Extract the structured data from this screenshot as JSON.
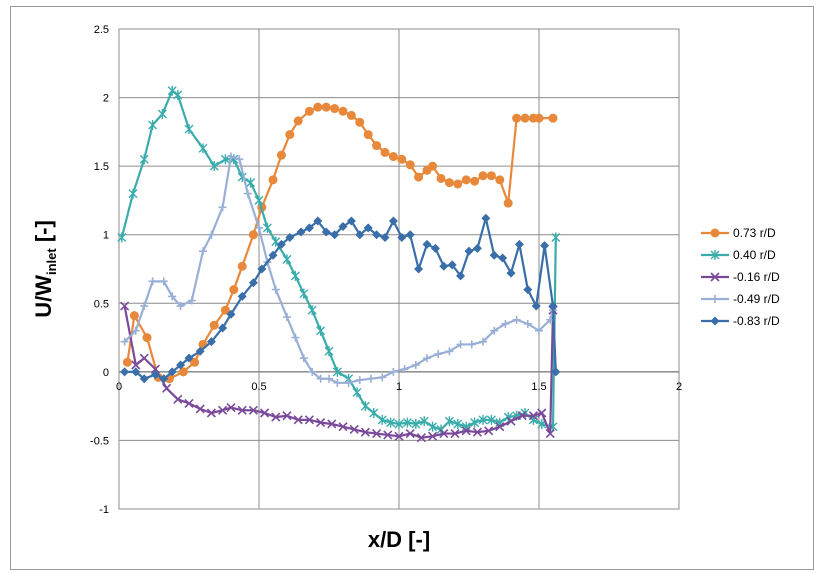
{
  "chart_data": {
    "type": "line",
    "title": "",
    "xlabel": "x/D [-]",
    "ylabel": {
      "main": "U/W",
      "subscript": "inlet",
      "suffix": " [-]"
    },
    "xlim": [
      0,
      2
    ],
    "ylim": [
      -1,
      2.5
    ],
    "xticks": [
      0,
      0.5,
      1,
      1.5,
      2
    ],
    "xtick_labels": [
      "0",
      "0.5",
      "1",
      "1.5",
      "2"
    ],
    "yticks": [
      -1,
      -0.5,
      0,
      0.5,
      1,
      1.5,
      2,
      2.5
    ],
    "ytick_labels": [
      "-1",
      "-0.5",
      "0",
      "0.5",
      "1",
      "1.5",
      "2",
      "2.5"
    ],
    "grid": true,
    "legend_position": "right",
    "series": [
      {
        "name": "0.73 r/D",
        "color": "#e8883a",
        "marker": "circle",
        "x": [
          0.03,
          0.055,
          0.1,
          0.14,
          0.18,
          0.23,
          0.27,
          0.3,
          0.34,
          0.38,
          0.41,
          0.44,
          0.48,
          0.51,
          0.55,
          0.58,
          0.61,
          0.64,
          0.68,
          0.71,
          0.74,
          0.77,
          0.8,
          0.83,
          0.86,
          0.89,
          0.92,
          0.95,
          0.98,
          1.01,
          1.04,
          1.07,
          1.1,
          1.12,
          1.15,
          1.18,
          1.21,
          1.24,
          1.27,
          1.3,
          1.33,
          1.36,
          1.39,
          1.42,
          1.45,
          1.48,
          1.5,
          1.55
        ],
        "y": [
          0.07,
          0.41,
          0.25,
          -0.04,
          -0.05,
          0.0,
          0.07,
          0.2,
          0.34,
          0.45,
          0.6,
          0.77,
          1.0,
          1.2,
          1.4,
          1.58,
          1.73,
          1.83,
          1.9,
          1.93,
          1.93,
          1.92,
          1.9,
          1.87,
          1.82,
          1.73,
          1.65,
          1.6,
          1.57,
          1.55,
          1.51,
          1.42,
          1.47,
          1.5,
          1.41,
          1.38,
          1.37,
          1.4,
          1.39,
          1.43,
          1.43,
          1.4,
          1.23,
          1.85,
          1.85,
          1.85,
          1.85,
          1.85
        ]
      },
      {
        "name": "0.40 r/D",
        "color": "#3aacac",
        "marker": "star",
        "x": [
          0.01,
          0.05,
          0.09,
          0.12,
          0.155,
          0.19,
          0.21,
          0.25,
          0.3,
          0.34,
          0.38,
          0.41,
          0.44,
          0.47,
          0.5,
          0.53,
          0.56,
          0.6,
          0.63,
          0.66,
          0.69,
          0.72,
          0.75,
          0.78,
          0.82,
          0.85,
          0.88,
          0.91,
          0.94,
          0.97,
          1.0,
          1.03,
          1.06,
          1.09,
          1.12,
          1.15,
          1.18,
          1.21,
          1.24,
          1.27,
          1.3,
          1.33,
          1.36,
          1.39,
          1.42,
          1.45,
          1.48,
          1.51,
          1.55,
          1.56
        ],
        "y": [
          0.98,
          1.3,
          1.55,
          1.8,
          1.88,
          2.05,
          2.02,
          1.77,
          1.63,
          1.5,
          1.55,
          1.55,
          1.42,
          1.38,
          1.25,
          1.05,
          0.95,
          0.82,
          0.7,
          0.57,
          0.45,
          0.3,
          0.15,
          0.0,
          -0.05,
          -0.15,
          -0.25,
          -0.3,
          -0.35,
          -0.37,
          -0.38,
          -0.37,
          -0.38,
          -0.36,
          -0.4,
          -0.42,
          -0.36,
          -0.38,
          -0.4,
          -0.37,
          -0.35,
          -0.35,
          -0.37,
          -0.33,
          -0.32,
          -0.3,
          -0.35,
          -0.38,
          -0.4,
          0.98
        ]
      },
      {
        "name": "-0.16 r/D",
        "color": "#7a4a9a",
        "marker": "x",
        "x": [
          0.02,
          0.06,
          0.09,
          0.13,
          0.17,
          0.21,
          0.25,
          0.29,
          0.33,
          0.37,
          0.4,
          0.44,
          0.48,
          0.52,
          0.56,
          0.6,
          0.64,
          0.68,
          0.72,
          0.76,
          0.8,
          0.84,
          0.88,
          0.92,
          0.96,
          1.0,
          1.04,
          1.08,
          1.12,
          1.16,
          1.2,
          1.24,
          1.28,
          1.32,
          1.36,
          1.4,
          1.44,
          1.48,
          1.51,
          1.54,
          1.55
        ],
        "y": [
          0.48,
          0.05,
          0.1,
          0.02,
          -0.12,
          -0.2,
          -0.23,
          -0.27,
          -0.3,
          -0.28,
          -0.26,
          -0.28,
          -0.28,
          -0.3,
          -0.33,
          -0.32,
          -0.35,
          -0.35,
          -0.37,
          -0.38,
          -0.4,
          -0.42,
          -0.44,
          -0.45,
          -0.46,
          -0.47,
          -0.45,
          -0.48,
          -0.47,
          -0.45,
          -0.45,
          -0.43,
          -0.44,
          -0.43,
          -0.4,
          -0.36,
          -0.32,
          -0.32,
          -0.3,
          -0.45,
          0.45
        ]
      },
      {
        "name": "-0.49 r/D",
        "color": "#9aafd6",
        "marker": "plus",
        "x": [
          0.02,
          0.06,
          0.09,
          0.12,
          0.16,
          0.19,
          0.22,
          0.26,
          0.3,
          0.33,
          0.37,
          0.4,
          0.43,
          0.46,
          0.5,
          0.53,
          0.56,
          0.6,
          0.63,
          0.66,
          0.69,
          0.72,
          0.75,
          0.78,
          0.82,
          0.86,
          0.9,
          0.94,
          0.98,
          1.02,
          1.06,
          1.1,
          1.14,
          1.18,
          1.22,
          1.26,
          1.3,
          1.34,
          1.38,
          1.42,
          1.46,
          1.5,
          1.54,
          1.55
        ],
        "y": [
          0.22,
          0.3,
          0.48,
          0.66,
          0.66,
          0.55,
          0.48,
          0.52,
          0.88,
          1.0,
          1.2,
          1.57,
          1.55,
          1.3,
          1.05,
          0.8,
          0.6,
          0.4,
          0.25,
          0.1,
          0.0,
          -0.05,
          -0.05,
          -0.08,
          -0.08,
          -0.06,
          -0.05,
          -0.04,
          0.0,
          0.02,
          0.05,
          0.1,
          0.13,
          0.15,
          0.2,
          0.2,
          0.22,
          0.3,
          0.35,
          0.38,
          0.35,
          0.3,
          0.38,
          0.45
        ]
      },
      {
        "name": "-0.83 r/D",
        "color": "#3a6ea8",
        "marker": "diamond",
        "x": [
          0.02,
          0.06,
          0.09,
          0.13,
          0.16,
          0.19,
          0.22,
          0.25,
          0.29,
          0.33,
          0.37,
          0.4,
          0.44,
          0.48,
          0.51,
          0.55,
          0.58,
          0.61,
          0.65,
          0.68,
          0.71,
          0.74,
          0.77,
          0.8,
          0.83,
          0.86,
          0.89,
          0.92,
          0.95,
          0.98,
          1.01,
          1.04,
          1.07,
          1.1,
          1.13,
          1.16,
          1.19,
          1.22,
          1.25,
          1.28,
          1.31,
          1.34,
          1.37,
          1.4,
          1.43,
          1.46,
          1.49,
          1.52,
          1.55,
          1.56
        ],
        "y": [
          0.0,
          0.0,
          -0.05,
          -0.02,
          -0.05,
          0.0,
          0.05,
          0.1,
          0.15,
          0.22,
          0.32,
          0.42,
          0.55,
          0.65,
          0.75,
          0.85,
          0.93,
          0.98,
          1.02,
          1.05,
          1.1,
          1.02,
          1.0,
          1.06,
          1.1,
          1.0,
          1.05,
          1.0,
          0.98,
          1.1,
          0.98,
          1.0,
          0.75,
          0.93,
          0.9,
          0.77,
          0.78,
          0.7,
          0.88,
          0.9,
          1.12,
          0.85,
          0.83,
          0.72,
          0.93,
          0.6,
          0.48,
          0.92,
          0.48,
          0.0
        ]
      }
    ]
  }
}
